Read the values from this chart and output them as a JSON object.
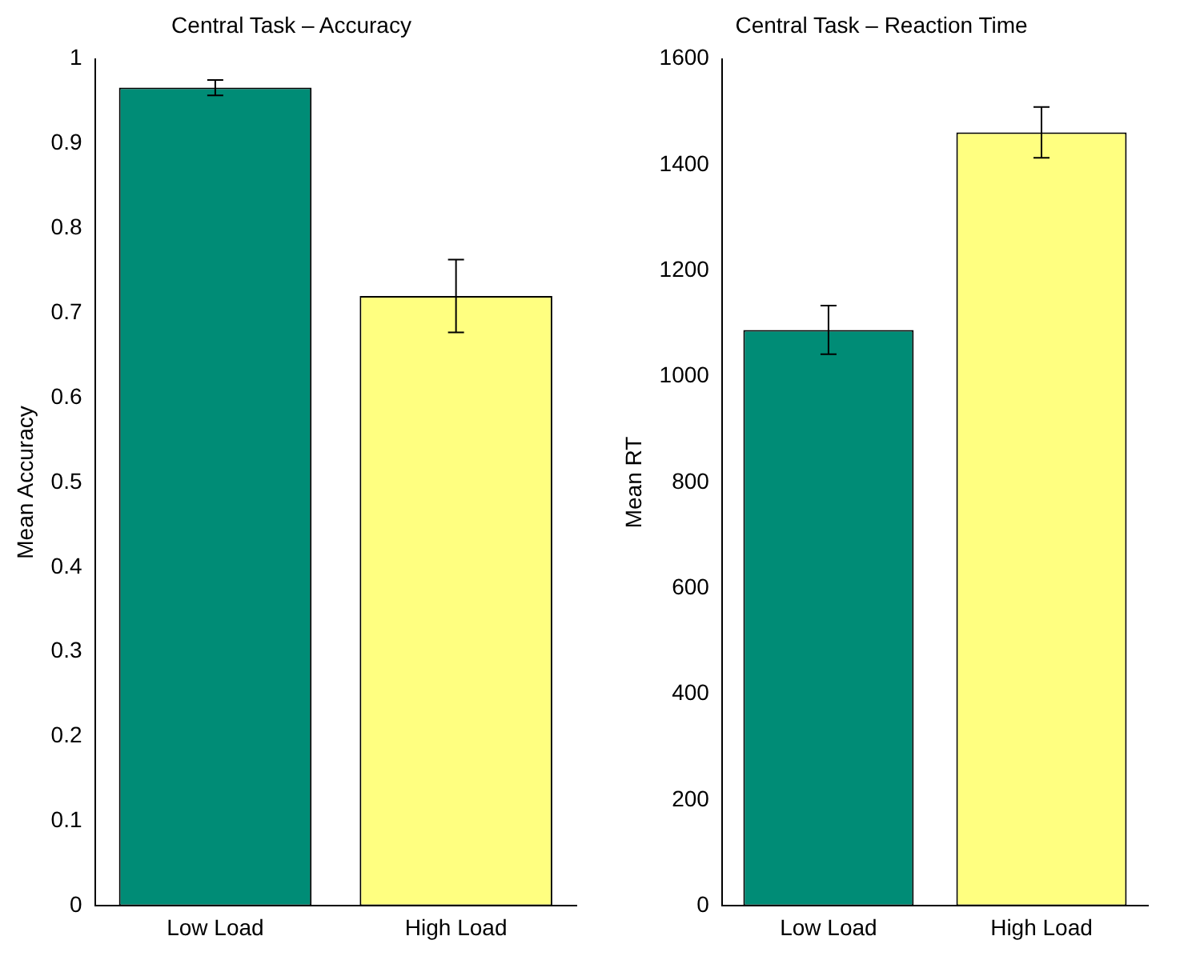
{
  "chart_data": [
    {
      "type": "bar",
      "title": "Central Task – Accuracy",
      "ylabel": "Mean Accuracy",
      "categories": [
        "Low Load",
        "High Load"
      ],
      "values": [
        0.966,
        0.72
      ],
      "colors": [
        "#008c76",
        "#ffff80"
      ],
      "errors": [
        0.009,
        0.043
      ],
      "ylim": [
        0,
        1
      ],
      "yticks": [
        0,
        0.1,
        0.2,
        0.3,
        0.4,
        0.5,
        0.6,
        0.7,
        0.8,
        0.9,
        1
      ],
      "grid": false,
      "legend": false
    },
    {
      "type": "bar",
      "title": "Central Task – Reaction Time",
      "ylabel": "Mean RT",
      "categories": [
        "Low Load",
        "High Load"
      ],
      "values": [
        1088,
        1461
      ],
      "colors": [
        "#008c76",
        "#ffff80"
      ],
      "errors": [
        46,
        48
      ],
      "ylim": [
        0,
        1600
      ],
      "yticks": [
        0,
        200,
        400,
        600,
        800,
        1000,
        1200,
        1400,
        1600
      ],
      "grid": false,
      "legend": false
    }
  ]
}
